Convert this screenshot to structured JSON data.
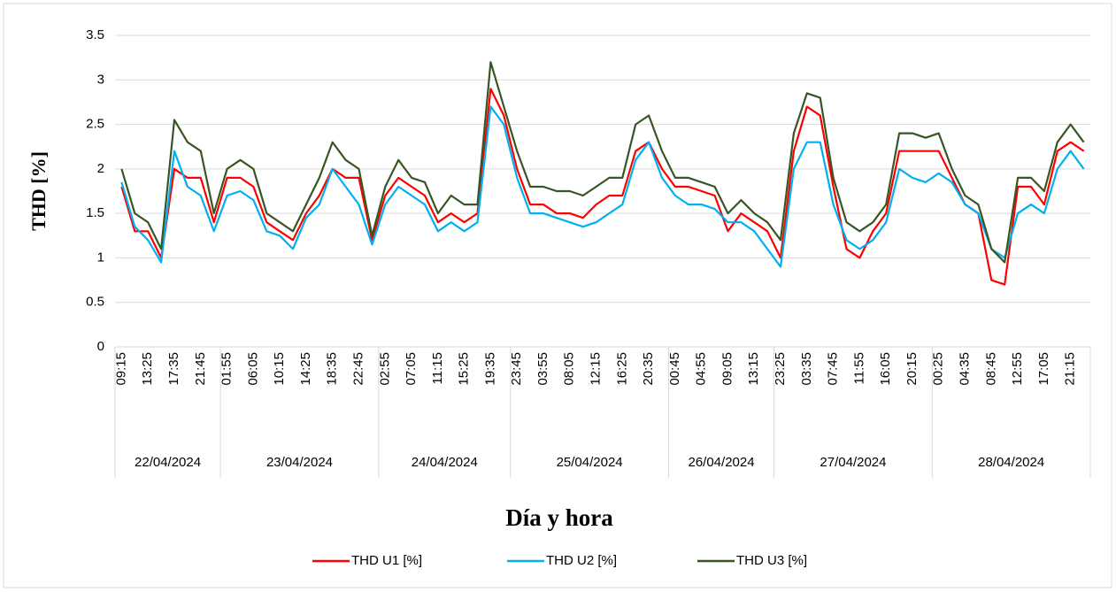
{
  "chart_data": {
    "type": "line",
    "x_label": "Día y hora",
    "y_label": "THD [%]",
    "category_groups": [
      {
        "label": "22/04/2024",
        "categories": [
          "09:15",
          null,
          "13:25",
          null,
          "17:35",
          null,
          "21:45",
          null
        ]
      },
      {
        "label": "23/04/2024",
        "categories": [
          "01:55",
          null,
          "06:05",
          null,
          "10:15",
          null,
          "14:25",
          null,
          "18:35",
          null,
          "22:45",
          null
        ]
      },
      {
        "label": "24/04/2024",
        "categories": [
          "02:55",
          null,
          "07:05",
          null,
          "11:15",
          null,
          "15:25",
          null,
          "19:35",
          null
        ]
      },
      {
        "label": "25/04/2024",
        "categories": [
          "23:45",
          null,
          "03:55",
          null,
          "08:05",
          null,
          "12:15",
          null,
          "16:25",
          null,
          "20:35",
          null
        ]
      },
      {
        "label": "26/04/2024",
        "categories": [
          "00:45",
          null,
          "04:55",
          null,
          "09:05",
          null,
          "13:15",
          null
        ]
      },
      {
        "label": "27/04/2024",
        "categories": [
          "23:25",
          null,
          "03:35",
          null,
          "07:45",
          null,
          "11:55",
          null,
          "16:05",
          null,
          "20:15",
          null
        ]
      },
      {
        "label": "28/04/2024",
        "categories": [
          "00:25",
          null,
          "04:35",
          null,
          "08:45",
          null,
          "12:55",
          null,
          "17:05",
          null,
          "21:15",
          null
        ]
      }
    ],
    "series": [
      {
        "name": "THD U1 [%]",
        "color": "#ff0000",
        "values": [
          1.8,
          1.3,
          1.3,
          1.0,
          2.0,
          1.9,
          1.9,
          1.4,
          1.9,
          1.9,
          1.8,
          1.4,
          1.3,
          1.2,
          1.5,
          1.7,
          2.0,
          1.9,
          1.9,
          1.2,
          1.7,
          1.9,
          1.8,
          1.7,
          1.4,
          1.5,
          1.4,
          1.5,
          2.9,
          2.6,
          2.0,
          1.6,
          1.6,
          1.5,
          1.5,
          1.45,
          1.6,
          1.7,
          1.7,
          2.2,
          2.3,
          2.0,
          1.8,
          1.8,
          1.75,
          1.7,
          1.3,
          1.5,
          1.4,
          1.3,
          1.0,
          2.2,
          2.7,
          2.6,
          1.8,
          1.1,
          1.0,
          1.3,
          1.5,
          2.2,
          2.2,
          2.2,
          2.2,
          1.9,
          1.6,
          1.5,
          0.75,
          0.7,
          1.8,
          1.8,
          1.6,
          2.2,
          2.3,
          2.2
        ]
      },
      {
        "name": "THD U2 [%]",
        "color": "#00b0f0",
        "values": [
          1.85,
          1.35,
          1.2,
          0.95,
          2.2,
          1.8,
          1.7,
          1.3,
          1.7,
          1.75,
          1.65,
          1.3,
          1.25,
          1.1,
          1.45,
          1.6,
          2.0,
          1.8,
          1.6,
          1.15,
          1.6,
          1.8,
          1.7,
          1.6,
          1.3,
          1.4,
          1.3,
          1.4,
          2.7,
          2.5,
          1.9,
          1.5,
          1.5,
          1.45,
          1.4,
          1.35,
          1.4,
          1.5,
          1.6,
          2.1,
          2.3,
          1.9,
          1.7,
          1.6,
          1.6,
          1.55,
          1.4,
          1.4,
          1.3,
          1.1,
          0.9,
          2.0,
          2.3,
          2.3,
          1.6,
          1.2,
          1.1,
          1.2,
          1.4,
          2.0,
          1.9,
          1.85,
          1.95,
          1.85,
          1.6,
          1.5,
          1.1,
          1.0,
          1.5,
          1.6,
          1.5,
          2.0,
          2.2,
          2.0
        ]
      },
      {
        "name": "THD U3 [%]",
        "color": "#375623",
        "values": [
          2.0,
          1.5,
          1.4,
          1.1,
          2.55,
          2.3,
          2.2,
          1.5,
          2.0,
          2.1,
          2.0,
          1.5,
          1.4,
          1.3,
          1.6,
          1.9,
          2.3,
          2.1,
          2.0,
          1.25,
          1.8,
          2.1,
          1.9,
          1.85,
          1.5,
          1.7,
          1.6,
          1.6,
          3.2,
          2.7,
          2.2,
          1.8,
          1.8,
          1.75,
          1.75,
          1.7,
          1.8,
          1.9,
          1.9,
          2.5,
          2.6,
          2.2,
          1.9,
          1.9,
          1.85,
          1.8,
          1.5,
          1.65,
          1.5,
          1.4,
          1.2,
          2.4,
          2.85,
          2.8,
          1.9,
          1.4,
          1.3,
          1.4,
          1.6,
          2.4,
          2.4,
          2.35,
          2.4,
          2.0,
          1.7,
          1.6,
          1.1,
          0.95,
          1.9,
          1.9,
          1.75,
          2.3,
          2.5,
          2.3
        ]
      }
    ],
    "ylim": [
      0,
      3.5
    ],
    "yticks": [
      0,
      0.5,
      1,
      1.5,
      2,
      2.5,
      3,
      3.5
    ],
    "grid": true,
    "legend": "bottom"
  }
}
